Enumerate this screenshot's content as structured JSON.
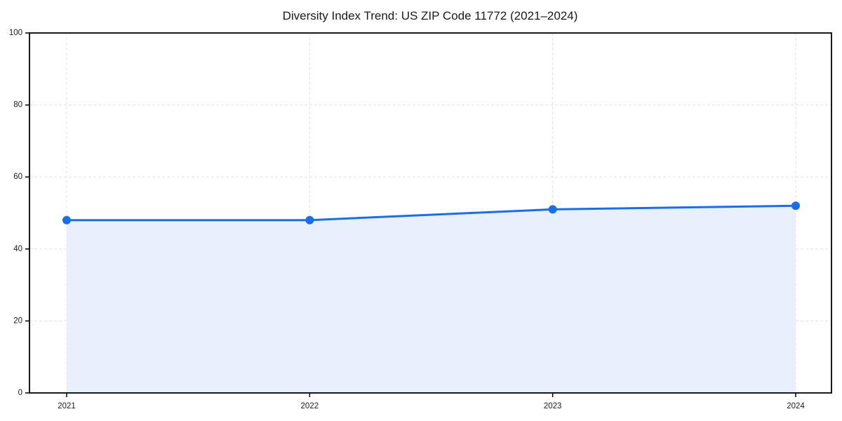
{
  "chart_data": {
    "type": "area",
    "title": "Diversity Index Trend: US ZIP Code 11772 (2021–2024)",
    "xlabel": "",
    "ylabel": "",
    "categories": [
      "2021",
      "2022",
      "2023",
      "2024"
    ],
    "series": [
      {
        "name": "Diversity Index",
        "values": [
          48,
          48,
          51,
          52
        ]
      }
    ],
    "ylim": [
      0,
      100
    ],
    "yticks": [
      0,
      20,
      40,
      60,
      80,
      100
    ],
    "grid": "dashed, horizontal and vertical at major ticks",
    "legend_position": "none",
    "colors": {
      "line": "#1b6ee8",
      "marker": "#1b6ee8",
      "area_fill": "#e8f0fd",
      "grid": "#e2e2e2",
      "spine": "#000000",
      "text": "#1a1a1a",
      "background": "#ffffff"
    }
  }
}
